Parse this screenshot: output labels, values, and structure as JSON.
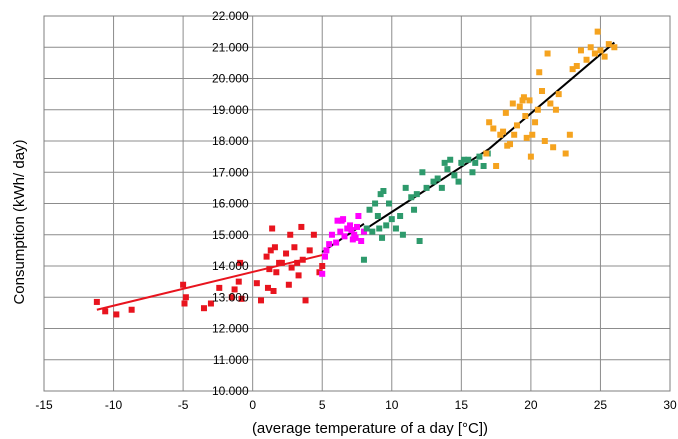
{
  "chart_data": {
    "type": "scatter",
    "xlabel": "(average temperature of a day [°C])",
    "ylabel": "Consumption (kWh/ day)",
    "xlim": [
      -15,
      30
    ],
    "ylim": [
      10000,
      22000
    ],
    "x_ticks": [
      "-15",
      "-10",
      "-5",
      "0",
      "5",
      "10",
      "15",
      "20",
      "25",
      "30"
    ],
    "y_ticks": [
      "10.000",
      "11.000",
      "12.000",
      "13.000",
      "14.000",
      "15.000",
      "16.000",
      "17.000",
      "18.000",
      "19.000",
      "20.000",
      "21.000",
      "22.000"
    ],
    "x_tick_values": [
      -15,
      -10,
      -5,
      0,
      5,
      10,
      15,
      20,
      25,
      30
    ],
    "y_tick_values": [
      10000,
      11000,
      12000,
      13000,
      14000,
      15000,
      16000,
      17000,
      18000,
      19000,
      20000,
      21000,
      22000
    ],
    "grid": true,
    "legend": "none",
    "series": [
      {
        "color": "#e8141e",
        "points": [
          [
            -11.2,
            12850
          ],
          [
            -10.6,
            12550
          ],
          [
            -9.8,
            12450
          ],
          [
            -8.7,
            12600
          ],
          [
            -5.0,
            13400
          ],
          [
            -4.9,
            12800
          ],
          [
            -4.8,
            13000
          ],
          [
            -3.5,
            12650
          ],
          [
            -3.0,
            12800
          ],
          [
            -2.4,
            13300
          ],
          [
            -1.5,
            13000
          ],
          [
            -1.3,
            13250
          ],
          [
            -1.0,
            13500
          ],
          [
            -0.9,
            14100
          ],
          [
            -0.8,
            12950
          ],
          [
            0.3,
            13450
          ],
          [
            0.6,
            12900
          ],
          [
            1.0,
            14300
          ],
          [
            1.1,
            13300
          ],
          [
            1.2,
            13900
          ],
          [
            1.3,
            14500
          ],
          [
            1.4,
            15200
          ],
          [
            1.5,
            13200
          ],
          [
            1.6,
            14600
          ],
          [
            1.7,
            13800
          ],
          [
            1.9,
            14100
          ],
          [
            2.1,
            14100
          ],
          [
            2.4,
            14400
          ],
          [
            2.6,
            13400
          ],
          [
            2.7,
            15000
          ],
          [
            2.8,
            13950
          ],
          [
            3.0,
            14600
          ],
          [
            3.2,
            14100
          ],
          [
            3.3,
            13700
          ],
          [
            3.5,
            15250
          ],
          [
            3.6,
            14200
          ],
          [
            3.8,
            12900
          ],
          [
            4.1,
            14500
          ],
          [
            4.4,
            15000
          ],
          [
            4.8,
            13800
          ],
          [
            5.0,
            14000
          ]
        ]
      },
      {
        "color": "#ff00ff",
        "points": [
          [
            5.0,
            13750
          ],
          [
            5.2,
            14300
          ],
          [
            5.3,
            14500
          ],
          [
            5.5,
            14700
          ],
          [
            5.7,
            15000
          ],
          [
            6.0,
            14750
          ],
          [
            6.1,
            15450
          ],
          [
            6.3,
            15100
          ],
          [
            6.5,
            15500
          ],
          [
            6.6,
            14950
          ],
          [
            6.8,
            15200
          ],
          [
            7.0,
            15300
          ],
          [
            7.1,
            15150
          ],
          [
            7.3,
            15000
          ],
          [
            7.4,
            14900
          ],
          [
            7.5,
            15250
          ],
          [
            7.6,
            15600
          ],
          [
            7.8,
            14800
          ],
          [
            8.0,
            15100
          ],
          [
            7.2,
            14850
          ],
          [
            6.4,
            15450
          ]
        ]
      },
      {
        "color": "#2e9a6c",
        "points": [
          [
            8.0,
            14200
          ],
          [
            8.2,
            15200
          ],
          [
            8.4,
            15800
          ],
          [
            8.6,
            15100
          ],
          [
            8.8,
            16000
          ],
          [
            9.0,
            15600
          ],
          [
            9.1,
            15200
          ],
          [
            9.3,
            14900
          ],
          [
            9.4,
            16400
          ],
          [
            9.6,
            15300
          ],
          [
            9.8,
            16000
          ],
          [
            10.0,
            15500
          ],
          [
            10.3,
            15200
          ],
          [
            10.6,
            15600
          ],
          [
            10.8,
            15000
          ],
          [
            11.0,
            16500
          ],
          [
            11.4,
            16200
          ],
          [
            11.8,
            16300
          ],
          [
            12.0,
            14800
          ],
          [
            12.2,
            17000
          ],
          [
            12.5,
            16500
          ],
          [
            13.0,
            16700
          ],
          [
            13.3,
            16800
          ],
          [
            13.6,
            16500
          ],
          [
            14.0,
            17100
          ],
          [
            14.2,
            17400
          ],
          [
            14.5,
            16900
          ],
          [
            14.8,
            16700
          ],
          [
            15.0,
            17300
          ],
          [
            15.2,
            17400
          ],
          [
            15.5,
            17400
          ],
          [
            15.8,
            17000
          ],
          [
            16.0,
            17300
          ],
          [
            16.3,
            17500
          ],
          [
            16.6,
            17200
          ],
          [
            16.9,
            17600
          ],
          [
            13.8,
            17300
          ],
          [
            11.6,
            15800
          ],
          [
            9.2,
            16300
          ]
        ]
      },
      {
        "color": "#f5a31f",
        "points": [
          [
            16.8,
            17600
          ],
          [
            17.0,
            18600
          ],
          [
            17.3,
            18400
          ],
          [
            17.5,
            17200
          ],
          [
            17.8,
            18200
          ],
          [
            18.0,
            18300
          ],
          [
            18.2,
            18900
          ],
          [
            18.5,
            17900
          ],
          [
            18.7,
            19200
          ],
          [
            18.8,
            18200
          ],
          [
            19.0,
            18500
          ],
          [
            19.2,
            19100
          ],
          [
            19.4,
            19300
          ],
          [
            19.6,
            18800
          ],
          [
            19.7,
            18100
          ],
          [
            19.9,
            19300
          ],
          [
            20.0,
            17500
          ],
          [
            20.1,
            18200
          ],
          [
            20.3,
            18600
          ],
          [
            20.5,
            19000
          ],
          [
            20.6,
            20200
          ],
          [
            20.8,
            19600
          ],
          [
            21.0,
            18000
          ],
          [
            21.2,
            20800
          ],
          [
            21.4,
            19200
          ],
          [
            21.6,
            17800
          ],
          [
            21.8,
            19000
          ],
          [
            22.0,
            19500
          ],
          [
            22.5,
            17600
          ],
          [
            22.8,
            18200
          ],
          [
            23.0,
            20300
          ],
          [
            23.3,
            20400
          ],
          [
            23.6,
            20900
          ],
          [
            24.0,
            20600
          ],
          [
            24.3,
            21000
          ],
          [
            24.6,
            20800
          ],
          [
            24.8,
            21500
          ],
          [
            25.0,
            20900
          ],
          [
            25.3,
            20700
          ],
          [
            25.6,
            21100
          ],
          [
            26.0,
            21000
          ],
          [
            19.5,
            19400
          ],
          [
            18.3,
            17850
          ]
        ]
      }
    ],
    "trendlines": [
      {
        "color": "#e8141e",
        "x": [
          -11.2,
          5.0
        ],
        "y": [
          12600,
          14350
        ]
      },
      {
        "color": "#000000",
        "x": [
          5.0,
          8.0
        ],
        "y": [
          14450,
          15350
        ]
      },
      {
        "color": "#000000",
        "x": [
          8.0,
          17.0
        ],
        "y": [
          15150,
          17750
        ]
      },
      {
        "color": "#000000",
        "x": [
          17.0,
          26.0
        ],
        "y": [
          17750,
          21150
        ]
      }
    ]
  }
}
